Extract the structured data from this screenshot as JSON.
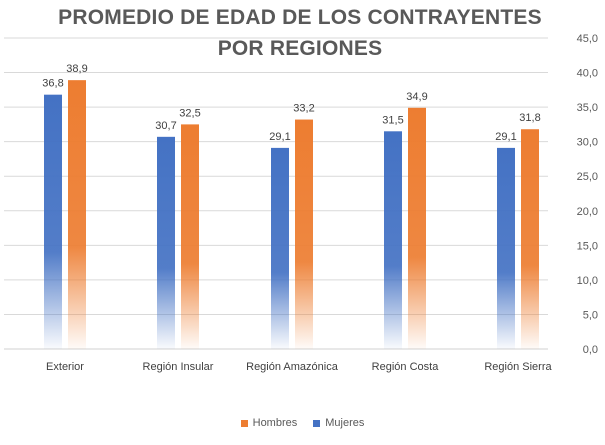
{
  "chart_data": {
    "type": "bar",
    "title_lines": [
      "PROMEDIO DE EDAD DE LOS CONTRAYENTES",
      "POR REGIONES"
    ],
    "categories": [
      "Exterior",
      "Región Insular",
      "Región Amazónica",
      "Región Costa",
      "Región Sierra"
    ],
    "series": [
      {
        "name": "Mujeres",
        "color": "#4472C4",
        "values": [
          36.8,
          30.7,
          29.1,
          31.5,
          29.1
        ],
        "labels": [
          "36,8",
          "30,7",
          "29,1",
          "31,5",
          "29,1"
        ]
      },
      {
        "name": "Hombres",
        "color": "#ED7D31",
        "values": [
          38.9,
          32.5,
          33.2,
          34.9,
          31.8
        ],
        "labels": [
          "38,9",
          "32,5",
          "33,2",
          "34,9",
          "31,8"
        ]
      }
    ],
    "ylim": [
      0,
      45
    ],
    "yticks": [
      0,
      5,
      10,
      15,
      20,
      25,
      30,
      35,
      40,
      45
    ],
    "ytick_labels": [
      "0,0",
      "5,0",
      "10,0",
      "15,0",
      "20,0",
      "25,0",
      "30,0",
      "35,0",
      "40,0",
      "45,0"
    ],
    "y_axis_side": "right",
    "grid": true,
    "bar_style": "gradient fading to white at base",
    "legend_position": "bottom",
    "legend_order": [
      "Hombres",
      "Mujeres"
    ]
  }
}
